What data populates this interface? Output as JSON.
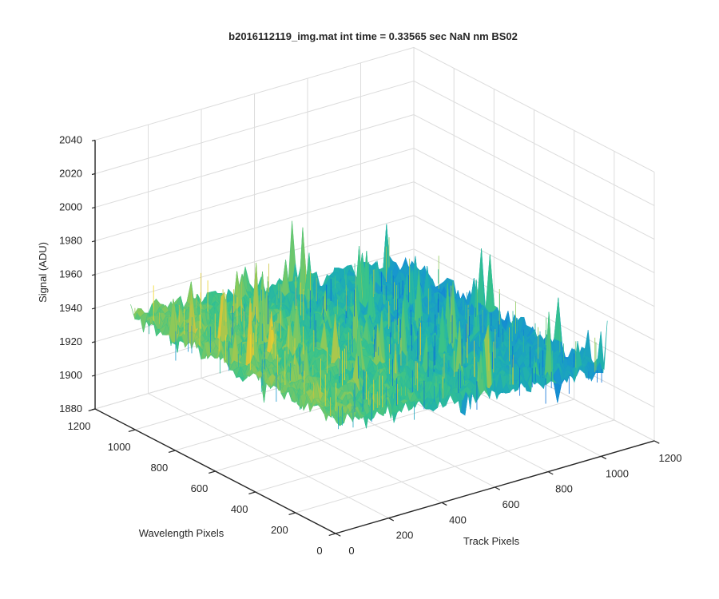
{
  "chart_data": {
    "type": "surface",
    "title": "b2016112119_img.mat int time = 0.33565 sec  NaN nm BS02",
    "xlabel": "Track Pixels",
    "ylabel": "Wavelength Pixels",
    "zlabel": "Signal (ADU)",
    "xlim": [
      0,
      1200
    ],
    "ylim": [
      0,
      1200
    ],
    "zlim": [
      1880,
      2040
    ],
    "xticks": [
      "0",
      "200",
      "400",
      "600",
      "800",
      "1000",
      "1200"
    ],
    "yticks": [
      "0",
      "200",
      "400",
      "600",
      "800",
      "1000",
      "1200"
    ],
    "zticks": [
      "1880",
      "1900",
      "1920",
      "1940",
      "1960",
      "1980",
      "2000",
      "2020",
      "2040"
    ],
    "x_extent": [
      1,
      1024
    ],
    "y_extent": [
      1,
      1024
    ],
    "base_level_at_x0": 1948,
    "base_level_at_x_max": 1930,
    "noise_range": [
      1900,
      2020
    ],
    "grid": true,
    "colormap": "parula",
    "colors": [
      "#0a6fd8",
      "#1896cf",
      "#1fb0b0",
      "#39c38a",
      "#8bc95a",
      "#d3c43c",
      "#f2d728"
    ]
  }
}
